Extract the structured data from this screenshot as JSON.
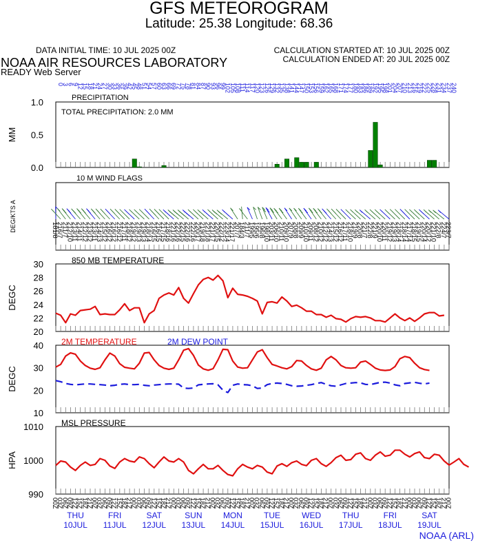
{
  "header": {
    "title": "GFS METEOROGRAM",
    "subtitle": "Latitude: 25.38 Longitude:  68.36",
    "init_time": "DATA INITIAL TIME: 10 JUL 2025 00Z",
    "calc_started": "CALCULATION STARTED AT: 10 JUL 2025 00Z",
    "calc_ended": "CALCULATION ENDED AT: 20 JUL 2025 00Z",
    "lab": "NOAA AIR RESOURCES LABORATORY",
    "server": "READY Web Server",
    "credit": "NOAA (ARL)"
  },
  "colors": {
    "precip": "#008000",
    "wind": "#3a7d3a",
    "temp": "#e01010",
    "dew": "#1a1adc",
    "forecast_hours": "#1a1adc"
  },
  "days": [
    {
      "name": "THU",
      "date": "10JUL"
    },
    {
      "name": "FRI",
      "date": "11JUL"
    },
    {
      "name": "SAT",
      "date": "12JUL"
    },
    {
      "name": "SUN",
      "date": "13JUL"
    },
    {
      "name": "MON",
      "date": "14JUL"
    },
    {
      "name": "TUE",
      "date": "15JUL"
    },
    {
      "name": "WED",
      "date": "16JUL"
    },
    {
      "name": "THU",
      "date": "17JUL"
    },
    {
      "name": "FRI",
      "date": "18JUL"
    },
    {
      "name": "SAT",
      "date": "19JUL"
    }
  ],
  "chart_data": [
    {
      "type": "bar",
      "title": "PRECIPITATION",
      "annotation": "TOTAL PRECIPITATION:   2.0 MM",
      "ylabel": "MM",
      "ylim": [
        0,
        1.0
      ],
      "yticks": [
        "0.0",
        "0.5",
        "1.0"
      ],
      "x_forecast_hours_step": 3,
      "x_forecast_hours_range": [
        0,
        240
      ],
      "bars": [
        {
          "hour": 48,
          "value": 0.13
        },
        {
          "hour": 51,
          "value": 0.01
        },
        {
          "hour": 66,
          "value": 0.03
        },
        {
          "hour": 135,
          "value": 0.05
        },
        {
          "hour": 141,
          "value": 0.13
        },
        {
          "hour": 147,
          "value": 0.15
        },
        {
          "hour": 150,
          "value": 0.08
        },
        {
          "hour": 153,
          "value": 0.08
        },
        {
          "hour": 159,
          "value": 0.08
        },
        {
          "hour": 192,
          "value": 0.26
        },
        {
          "hour": 195,
          "value": 0.69
        },
        {
          "hour": 198,
          "value": 0.04
        },
        {
          "hour": 228,
          "value": 0.11
        },
        {
          "hour": 231,
          "value": 0.11
        }
      ]
    },
    {
      "type": "wind_barbs",
      "title": "10 M  WIND FLAGS",
      "ylabel": "DEG/KTS  A",
      "labels": [
        "181/8",
        "216/7",
        "211/7",
        "212/10",
        "213/11",
        "214/11",
        "212/12",
        "213/12",
        "213/11",
        "214/13",
        "215/12",
        "216/12",
        "216/12",
        "216/12",
        "217/11",
        "218/12",
        "219/12",
        "219/13",
        "219/13",
        "218/14",
        "216/15",
        "216/15",
        "217/15",
        "218/16",
        "221/16",
        "222/16",
        "222/15",
        "222/16",
        "222/16",
        "220/17",
        "219/18",
        "221/18",
        "221/17",
        "220/15",
        "222/12",
        "223/14",
        "221/17",
        "207/7",
        "184/3",
        "211/7",
        "199/5",
        "195/6",
        "196/8",
        "198/10",
        "203/11",
        "206/10",
        "210/11",
        "209/10",
        "207/9",
        "208/8",
        "209/9",
        "210/10",
        "209/11",
        "208/12",
        "210/12",
        "212/12",
        "214/13",
        "215/12",
        "216/12",
        "217/11",
        "218/10",
        "219/9",
        "220/8",
        "221/7",
        "222/8",
        "221/9",
        "220/10",
        "220/11",
        "219/12",
        "219/13",
        "218/14",
        "218/14",
        "217/14",
        "218/15",
        "219/15",
        "220/14",
        "220/12",
        "221/10",
        "222/8",
        "224/7",
        "223/7"
      ]
    },
    {
      "type": "line",
      "title": "850 MB  TEMPERATURE",
      "ylabel": "DEGC",
      "ylim": [
        20,
        30
      ],
      "yticks": [
        "20",
        "22",
        "24",
        "26",
        "28",
        "30"
      ],
      "x_step_hours": 3,
      "series": [
        {
          "values": [
            22.7,
            22.4,
            21.3,
            22.6,
            22.4,
            23.1,
            23.2,
            23.3,
            23.7,
            22.5,
            22.6,
            22.5,
            22.5,
            23.2,
            24.1,
            23.1,
            23.5,
            23.5,
            21.3,
            22.6,
            23.1,
            24.9,
            25.4,
            25.7,
            25.4,
            26.5,
            24.9,
            24.2,
            25.6,
            26.9,
            27.7,
            28.0,
            27.6,
            28.3,
            27.5,
            25.0,
            26.4,
            25.5,
            25.4,
            25.2,
            24.9,
            24.5,
            22.6,
            24.3,
            24.4,
            24.2,
            25.1,
            24.5,
            23.7,
            23.9,
            23.5,
            23.0,
            23.0,
            22.5,
            22.5,
            22.1,
            22.4,
            21.9,
            21.8,
            21.4,
            21.9,
            22.2,
            22.1,
            22.2,
            22.0,
            21.6,
            21.6,
            21.4,
            22.0,
            22.6,
            22.0,
            21.6,
            22.0,
            21.5,
            22.0,
            22.6,
            22.8,
            22.8,
            22.3,
            22.4
          ]
        }
      ]
    },
    {
      "type": "line",
      "legend": [
        "2M TEMPERATURE",
        "2M  DEW POINT"
      ],
      "ylabel": "DEGC",
      "ylim": [
        10,
        40
      ],
      "yticks": [
        "10",
        "20",
        "30",
        "40"
      ],
      "x_step_hours": 3,
      "series": [
        {
          "name": "2M TEMPERATURE",
          "values": [
            30.3,
            31.5,
            35.2,
            36.6,
            36.0,
            33.0,
            31.0,
            29.8,
            29.3,
            30.0,
            33.5,
            36.5,
            35.2,
            31.8,
            30.2,
            29.8,
            29.5,
            32.0,
            36.5,
            36.8,
            33.5,
            31.0,
            29.8,
            29.3,
            29.8,
            33.5,
            37.8,
            38.5,
            35.5,
            31.2,
            29.5,
            28.9,
            29.6,
            33.5,
            38.2,
            38.0,
            33.0,
            30.3,
            29.8,
            30.0,
            33.5,
            37.0,
            38.0,
            34.5,
            31.5,
            30.8,
            30.0,
            29.5,
            30.5,
            33.2,
            33.0,
            31.0,
            29.5,
            28.9,
            29.8,
            33.5,
            35.0,
            33.5,
            31.0,
            30.0,
            29.8,
            30.0,
            32.5,
            33.0,
            31.5,
            29.8,
            29.0,
            28.8,
            29.0,
            30.5,
            34.0,
            35.0,
            34.5,
            32.0,
            30.0,
            29.2,
            28.8
          ]
        },
        {
          "name": "2M  DEW POINT",
          "values": [
            24.3,
            23.8,
            23.0,
            22.6,
            22.4,
            22.6,
            22.8,
            22.8,
            22.6,
            22.5,
            22.3,
            22.0,
            22.2,
            22.6,
            22.8,
            22.5,
            22.5,
            22.6,
            22.2,
            22.0,
            22.3,
            22.5,
            22.7,
            22.8,
            22.8,
            22.7,
            21.0,
            20.8,
            21.0,
            22.4,
            22.6,
            22.8,
            22.9,
            22.4,
            20.0,
            19.0,
            22.2,
            22.8,
            22.5,
            22.4,
            22.0,
            20.8,
            21.0,
            22.5,
            23.0,
            23.2,
            23.0,
            22.6,
            22.0,
            21.8,
            21.9,
            22.2,
            22.5,
            23.0,
            23.4,
            22.6,
            22.0,
            21.8,
            22.4,
            23.0,
            23.2,
            23.4,
            23.3,
            22.6,
            22.5,
            23.0,
            23.5,
            23.6,
            23.2,
            22.4,
            22.0,
            23.0,
            23.3,
            23.5,
            23.1,
            22.8,
            23.2
          ]
        }
      ]
    },
    {
      "type": "line",
      "title": "MSL PRESSURE",
      "ylabel": "HPA",
      "ylim": [
        990,
        1010
      ],
      "yticks": [
        "990",
        "1000",
        "1010"
      ],
      "x_step_hours": 3,
      "series": [
        {
          "values": [
            998.5,
            999.8,
            999.5,
            998.0,
            997.0,
            998.5,
            999.5,
            998.5,
            998.8,
            1000.5,
            1000.0,
            998.3,
            997.6,
            999.5,
            1000.5,
            999.8,
            999.5,
            1001.0,
            1000.5,
            999.0,
            997.8,
            999.5,
            1001.0,
            999.8,
            999.5,
            1000.5,
            999.5,
            997.0,
            996.0,
            997.5,
            998.8,
            997.5,
            997.5,
            998.5,
            997.0,
            995.8,
            995.4,
            997.5,
            998.8,
            998.0,
            997.5,
            998.5,
            998.0,
            996.5,
            996.0,
            998.3,
            999.0,
            998.2,
            999.3,
            999.8,
            998.8,
            998.4,
            1000.0,
            1000.5,
            999.0,
            998.2,
            999.3,
            1000.8,
            1001.5,
            1000.0,
            1000.2,
            1001.8,
            1002.2,
            1000.5,
            1000.0,
            1001.5,
            1002.5,
            1001.2,
            1001.5,
            1003.0,
            1003.0,
            1001.8,
            1001.0,
            1002.0,
            1002.5,
            1000.8,
            1000.5,
            1001.8,
            1001.5,
            999.8,
            998.6,
            999.5,
            1000.5,
            998.8,
            998.0
          ]
        }
      ]
    }
  ]
}
